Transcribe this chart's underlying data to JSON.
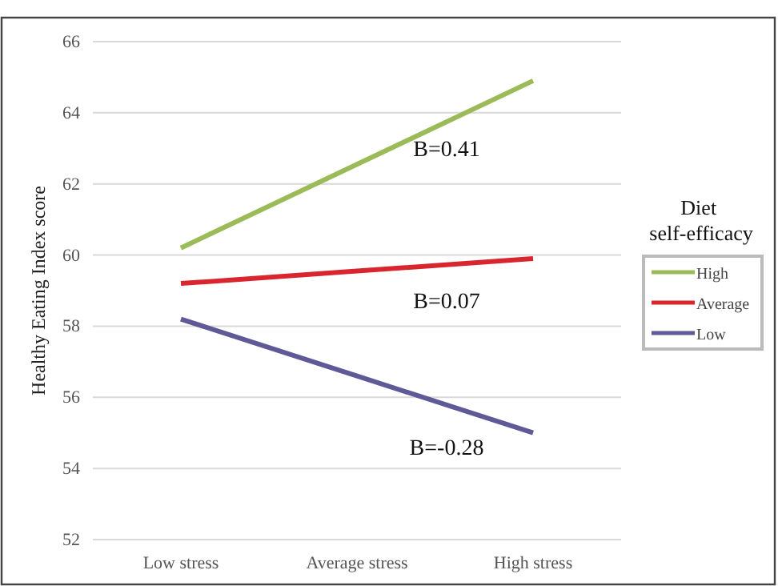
{
  "chart_data": {
    "type": "line",
    "ylabel": "Healthy Eating Index score",
    "legend_title": "Diet self-efficacy",
    "categories": [
      "Low stress",
      "Average stress",
      "High stress"
    ],
    "series": [
      {
        "name": "High",
        "color": "#9bbb59",
        "values": [
          60.2,
          62.55,
          64.9
        ]
      },
      {
        "name": "Average",
        "color": "#d9262e",
        "values": [
          59.2,
          59.55,
          59.9
        ]
      },
      {
        "name": "Low",
        "color": "#5f5a97",
        "values": [
          58.2,
          56.6,
          55.0
        ]
      }
    ],
    "annotations": [
      "B=0.41",
      "B=0.07",
      "B=-0.28"
    ],
    "ylim": [
      52,
      66
    ],
    "yticks": [
      52,
      54,
      56,
      58,
      60,
      62,
      64,
      66
    ],
    "grid": "y",
    "legend": "right",
    "marker": "none",
    "line_style": "solid"
  }
}
